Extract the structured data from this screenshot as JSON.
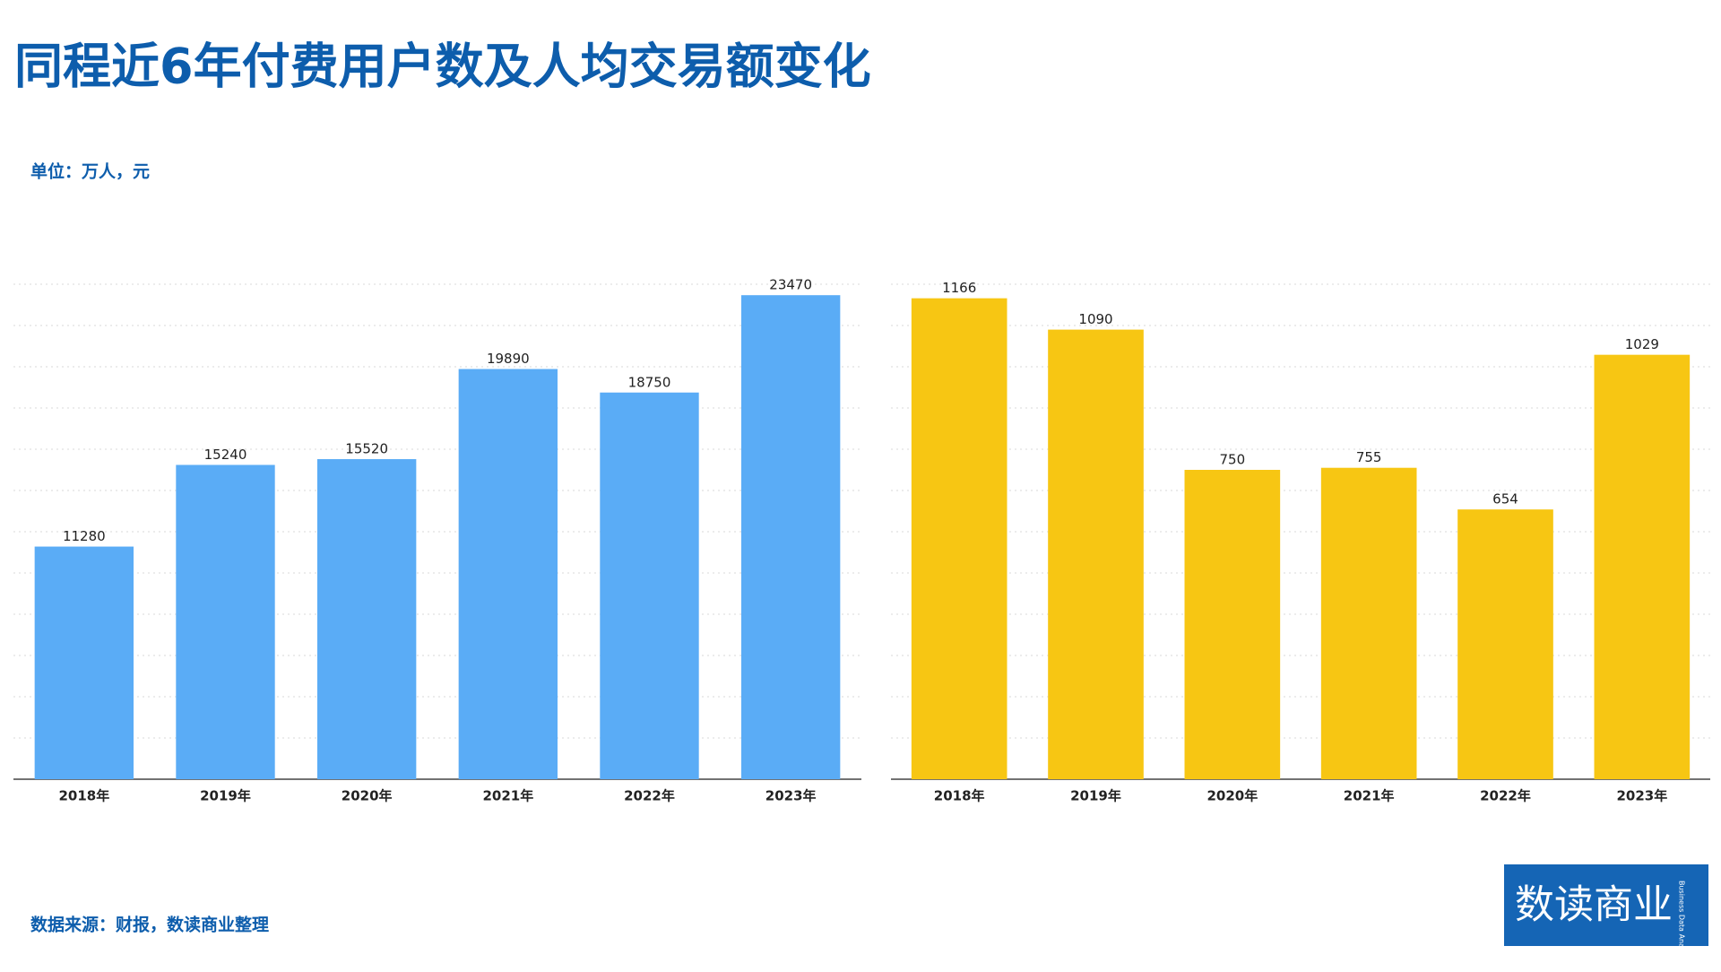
{
  "header": {
    "title": "同程近6年付费用户数及人均交易额变化",
    "subtitle": "单位：万人，元"
  },
  "chart_data": [
    {
      "type": "bar",
      "categories": [
        "2018年",
        "2019年",
        "2020年",
        "2021年",
        "2022年",
        "2023年"
      ],
      "values": [
        11280,
        15240,
        15520,
        19890,
        18750,
        23470
      ],
      "color": "#5aacf6",
      "ylim": [
        0,
        24000
      ],
      "yticks": [
        0,
        2000,
        4000,
        6000,
        8000,
        10000,
        12000,
        14000,
        16000,
        18000,
        20000,
        22000,
        24000
      ],
      "grid": true
    },
    {
      "type": "bar",
      "categories": [
        "2018年",
        "2019年",
        "2020年",
        "2021年",
        "2022年",
        "2023年"
      ],
      "values": [
        1166,
        1090,
        750,
        755,
        654,
        1029
      ],
      "color": "#f7c613",
      "ylim": [
        0,
        1200
      ],
      "yticks": [
        0,
        100,
        200,
        300,
        400,
        500,
        600,
        700,
        800,
        900,
        1000,
        1100,
        1200
      ],
      "grid": true
    }
  ],
  "footer": {
    "source": "数据来源：财报，数读商业整理",
    "logo": "数读商业",
    "logo_sub": "Business Data Analysis"
  }
}
